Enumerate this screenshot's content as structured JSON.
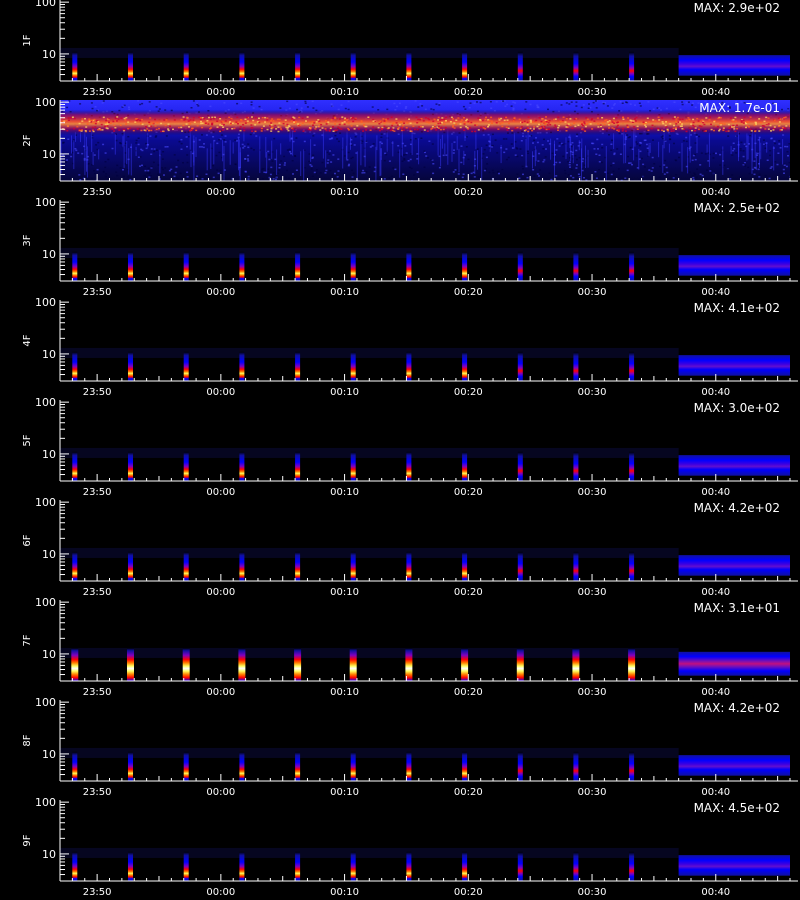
{
  "chart_data": {
    "type": "heatmap",
    "layout": "stacked-panels",
    "background": "#000000",
    "axis_color": "#ffffff",
    "colormap": [
      "#000000",
      "#1010a0",
      "#0000ff",
      "#8000c0",
      "#ff0000",
      "#ff8000",
      "#ffff60",
      "#ffffff"
    ],
    "x_ticks": [
      "23:50",
      "00:00",
      "00:10",
      "00:20",
      "00:30",
      "00:40"
    ],
    "x_tick_minutes": [
      -10,
      0,
      10,
      20,
      30,
      40
    ],
    "x_range_minutes": [
      -13,
      46
    ],
    "y_scale": "log",
    "y_range": [
      3,
      110
    ],
    "y_ticks": [
      "100",
      "10"
    ],
    "y_tick_values": [
      100,
      10
    ],
    "burst_minutes": [
      -11.8,
      -7.3,
      -2.8,
      1.7,
      6.2,
      10.7,
      15.2,
      19.7,
      24.2,
      28.7,
      33.2
    ],
    "steady_band_minutes": [
      37.0,
      46.0
    ],
    "panels": [
      {
        "label": "1F",
        "max": "MAX: 2.9e+02"
      },
      {
        "label": "2F",
        "max": "MAX: 1.7e-01",
        "style": "noise"
      },
      {
        "label": "3F",
        "max": "MAX: 2.5e+02"
      },
      {
        "label": "4F",
        "max": "MAX: 4.1e+02"
      },
      {
        "label": "5F",
        "max": "MAX: 3.0e+02"
      },
      {
        "label": "6F",
        "max": "MAX: 4.2e+02"
      },
      {
        "label": "7F",
        "max": "MAX: 3.1e+01",
        "style": "strong"
      },
      {
        "label": "8F",
        "max": "MAX: 4.2e+02"
      },
      {
        "label": "9F",
        "max": "MAX: 4.5e+02"
      }
    ]
  }
}
